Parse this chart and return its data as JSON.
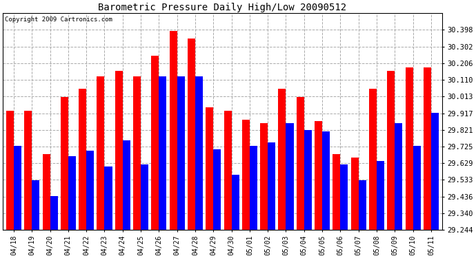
{
  "title": "Barometric Pressure Daily High/Low 20090512",
  "copyright": "Copyright 2009 Cartronics.com",
  "dates": [
    "04/18",
    "04/19",
    "04/20",
    "04/21",
    "04/22",
    "04/23",
    "04/24",
    "04/25",
    "04/26",
    "04/27",
    "04/28",
    "04/29",
    "04/30",
    "05/01",
    "05/02",
    "05/03",
    "05/04",
    "05/05",
    "05/06",
    "05/07",
    "05/08",
    "05/09",
    "05/10",
    "05/11"
  ],
  "highs": [
    29.93,
    29.93,
    29.68,
    30.01,
    30.06,
    30.13,
    30.16,
    30.13,
    30.25,
    30.39,
    30.35,
    29.95,
    29.93,
    29.88,
    29.86,
    30.06,
    30.01,
    29.87,
    29.68,
    29.66,
    30.06,
    30.16,
    30.18,
    30.18
  ],
  "lows": [
    29.73,
    29.53,
    29.44,
    29.67,
    29.7,
    29.61,
    29.76,
    29.62,
    30.13,
    30.13,
    30.13,
    29.71,
    29.56,
    29.73,
    29.75,
    29.86,
    29.82,
    29.81,
    29.62,
    29.53,
    29.64,
    29.86,
    29.73,
    29.92
  ],
  "high_color": "#ff0000",
  "low_color": "#0000ff",
  "bg_color": "#ffffff",
  "grid_color": "#aaaaaa",
  "ymin": 29.244,
  "ymax": 30.494,
  "yticks": [
    29.244,
    29.34,
    29.436,
    29.533,
    29.629,
    29.725,
    29.821,
    29.917,
    30.013,
    30.11,
    30.206,
    30.302,
    30.398
  ]
}
